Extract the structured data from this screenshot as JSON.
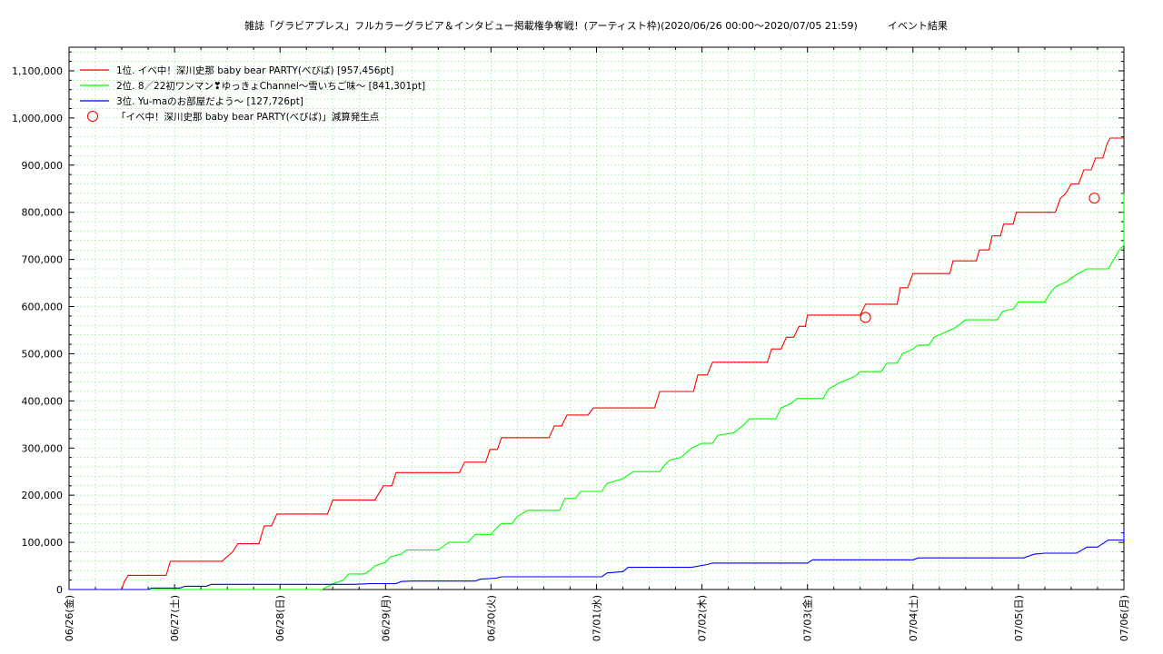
{
  "chart_data": {
    "type": "line",
    "title": "雑誌「グラビアプレス」フルカラーグラビア＆インタビュー掲載権争奪戦！(アーティスト枠)(2020/06/26 00:00〜2020/07/05 21:59)　　　イベント結果",
    "xlabel": "",
    "ylabel": "",
    "x_ticks": [
      "06/26(金)",
      "06/27(土)",
      "06/28(日)",
      "06/29(月)",
      "06/30(火)",
      "07/01(水)",
      "07/02(木)",
      "07/03(金)",
      "07/04(土)",
      "07/05(日)",
      "07/06(月)"
    ],
    "y_ticks": [
      "0",
      "100,000",
      "200,000",
      "300,000",
      "400,000",
      "500,000",
      "600,000",
      "700,000",
      "800,000",
      "900,000",
      "1,000,000",
      "1,100,000"
    ],
    "xlim_days": [
      0,
      10
    ],
    "ylim": [
      0,
      1150000
    ],
    "grid": true,
    "legend_position": "top-left",
    "series": [
      {
        "name": "1位. イベ中！深川史那 baby bear PARTY(べびば) [957,456pt]",
        "color": "#ff0000",
        "points": [
          [
            0,
            0
          ],
          [
            0.5,
            0
          ],
          [
            0.52,
            15000
          ],
          [
            0.56,
            30000
          ],
          [
            0.92,
            30000
          ],
          [
            0.96,
            60000
          ],
          [
            1.45,
            60000
          ],
          [
            1.55,
            80000
          ],
          [
            1.6,
            97000
          ],
          [
            1.8,
            97000
          ],
          [
            1.85,
            135000
          ],
          [
            1.92,
            135000
          ],
          [
            1.97,
            160000
          ],
          [
            2.45,
            160000
          ],
          [
            2.5,
            190000
          ],
          [
            2.9,
            190000
          ],
          [
            2.98,
            220000
          ],
          [
            3.06,
            220000
          ],
          [
            3.1,
            248000
          ],
          [
            3.7,
            248000
          ],
          [
            3.75,
            270000
          ],
          [
            3.95,
            270000
          ],
          [
            3.99,
            297000
          ],
          [
            4.06,
            297000
          ],
          [
            4.1,
            322000
          ],
          [
            4.55,
            322000
          ],
          [
            4.6,
            347000
          ],
          [
            4.67,
            347000
          ],
          [
            4.72,
            370000
          ],
          [
            4.92,
            370000
          ],
          [
            4.97,
            385000
          ],
          [
            5.55,
            385000
          ],
          [
            5.6,
            420000
          ],
          [
            5.92,
            420000
          ],
          [
            5.96,
            455000
          ],
          [
            6.05,
            455000
          ],
          [
            6.1,
            482000
          ],
          [
            6.62,
            482000
          ],
          [
            6.66,
            510000
          ],
          [
            6.75,
            510000
          ],
          [
            6.8,
            535000
          ],
          [
            6.87,
            535000
          ],
          [
            6.92,
            558000
          ],
          [
            6.98,
            558000
          ],
          [
            7.0,
            582000
          ],
          [
            7.5,
            582000
          ],
          [
            7.55,
            605000
          ],
          [
            7.85,
            605000
          ],
          [
            7.88,
            640000
          ],
          [
            7.95,
            640000
          ],
          [
            8.0,
            670000
          ],
          [
            8.35,
            670000
          ],
          [
            8.38,
            697000
          ],
          [
            8.6,
            697000
          ],
          [
            8.63,
            720000
          ],
          [
            8.72,
            720000
          ],
          [
            8.75,
            750000
          ],
          [
            8.83,
            750000
          ],
          [
            8.86,
            775000
          ],
          [
            8.95,
            775000
          ],
          [
            8.98,
            800000
          ],
          [
            9.35,
            800000
          ],
          [
            9.4,
            830000
          ],
          [
            9.45,
            840000
          ],
          [
            9.5,
            860000
          ],
          [
            9.57,
            860000
          ],
          [
            9.62,
            890000
          ],
          [
            9.69,
            890000
          ],
          [
            9.73,
            915000
          ],
          [
            9.8,
            915000
          ],
          [
            9.84,
            945000
          ],
          [
            9.87,
            957456
          ],
          [
            10,
            957456
          ]
        ]
      },
      {
        "name": "2位. 8／22初ワンマン❣ゆっきょChannel〜雪いちご味〜 [841,301pt]",
        "color": "#00ff00",
        "points": [
          [
            0,
            0
          ],
          [
            2.4,
            0
          ],
          [
            2.5,
            12000
          ],
          [
            2.6,
            20000
          ],
          [
            2.65,
            33000
          ],
          [
            2.8,
            33000
          ],
          [
            2.85,
            40000
          ],
          [
            2.9,
            50000
          ],
          [
            3.0,
            58000
          ],
          [
            3.05,
            70000
          ],
          [
            3.15,
            75000
          ],
          [
            3.2,
            84000
          ],
          [
            3.5,
            84000
          ],
          [
            3.6,
            100000
          ],
          [
            3.78,
            100000
          ],
          [
            3.85,
            117000
          ],
          [
            4.0,
            117000
          ],
          [
            4.05,
            130000
          ],
          [
            4.1,
            140000
          ],
          [
            4.2,
            140000
          ],
          [
            4.25,
            155000
          ],
          [
            4.35,
            168000
          ],
          [
            4.65,
            168000
          ],
          [
            4.7,
            193000
          ],
          [
            4.8,
            193000
          ],
          [
            4.85,
            208000
          ],
          [
            5.05,
            208000
          ],
          [
            5.1,
            225000
          ],
          [
            5.25,
            235000
          ],
          [
            5.35,
            250000
          ],
          [
            5.6,
            250000
          ],
          [
            5.65,
            265000
          ],
          [
            5.7,
            275000
          ],
          [
            5.8,
            280000
          ],
          [
            5.9,
            300000
          ],
          [
            6.0,
            310000
          ],
          [
            6.1,
            310000
          ],
          [
            6.15,
            327000
          ],
          [
            6.3,
            332000
          ],
          [
            6.4,
            350000
          ],
          [
            6.45,
            362000
          ],
          [
            6.7,
            362000
          ],
          [
            6.75,
            385000
          ],
          [
            6.85,
            395000
          ],
          [
            6.9,
            405000
          ],
          [
            7.15,
            405000
          ],
          [
            7.2,
            425000
          ],
          [
            7.3,
            438000
          ],
          [
            7.45,
            452000
          ],
          [
            7.5,
            462000
          ],
          [
            7.7,
            462000
          ],
          [
            7.75,
            480000
          ],
          [
            7.85,
            480000
          ],
          [
            7.9,
            500000
          ],
          [
            8.0,
            510000
          ],
          [
            8.05,
            518000
          ],
          [
            8.15,
            518000
          ],
          [
            8.2,
            535000
          ],
          [
            8.3,
            545000
          ],
          [
            8.4,
            555000
          ],
          [
            8.5,
            572000
          ],
          [
            8.8,
            572000
          ],
          [
            8.85,
            590000
          ],
          [
            8.95,
            595000
          ],
          [
            9.0,
            610000
          ],
          [
            9.25,
            610000
          ],
          [
            9.3,
            628000
          ],
          [
            9.35,
            642000
          ],
          [
            9.45,
            652000
          ],
          [
            9.55,
            668000
          ],
          [
            9.65,
            680000
          ],
          [
            9.85,
            680000
          ],
          [
            9.9,
            698000
          ],
          [
            9.95,
            718000
          ],
          [
            10.05,
            730000
          ],
          [
            10.2,
            748000
          ],
          [
            10.25,
            755000
          ],
          [
            10.35,
            758000
          ],
          [
            10.4,
            775000
          ],
          [
            10.5,
            790000
          ],
          [
            10.6,
            812000
          ],
          [
            10.68,
            835000
          ],
          [
            10.72,
            841301
          ],
          [
            10.75,
            841301
          ]
        ]
      },
      {
        "name": "3位. Yu-maのお部屋だよう〜 [127,726pt]",
        "color": "#0000ff",
        "points": [
          [
            0,
            0
          ],
          [
            0.75,
            0
          ],
          [
            0.78,
            3000
          ],
          [
            1.05,
            3000
          ],
          [
            1.1,
            7000
          ],
          [
            1.3,
            7000
          ],
          [
            1.35,
            11000
          ],
          [
            2.7,
            11000
          ],
          [
            2.8,
            12000
          ],
          [
            2.85,
            12500
          ],
          [
            3.1,
            12500
          ],
          [
            3.15,
            17000
          ],
          [
            3.25,
            18000
          ],
          [
            3.85,
            18000
          ],
          [
            3.9,
            22000
          ],
          [
            4.05,
            24000
          ],
          [
            4.1,
            27000
          ],
          [
            5.05,
            27000
          ],
          [
            5.1,
            35000
          ],
          [
            5.25,
            38000
          ],
          [
            5.3,
            47000
          ],
          [
            5.9,
            47000
          ],
          [
            6.05,
            53000
          ],
          [
            6.1,
            56000
          ],
          [
            7.0,
            56000
          ],
          [
            7.05,
            63000
          ],
          [
            8.0,
            63000
          ],
          [
            8.05,
            67000
          ],
          [
            9.05,
            67000
          ],
          [
            9.15,
            75000
          ],
          [
            9.25,
            77000
          ],
          [
            9.55,
            77000
          ],
          [
            9.65,
            90000
          ],
          [
            9.75,
            90000
          ],
          [
            9.85,
            105000
          ],
          [
            10.2,
            105000
          ],
          [
            10.3,
            120000
          ],
          [
            10.35,
            125000
          ],
          [
            10.45,
            127726
          ],
          [
            10.5,
            127726
          ]
        ]
      }
    ],
    "markers": {
      "name": "「イベ中！深川史那 baby bear PARTY(べびば)」減算発生点",
      "color": "#ff0000",
      "points": [
        [
          7.55,
          577000
        ],
        [
          9.72,
          830000
        ]
      ]
    }
  }
}
